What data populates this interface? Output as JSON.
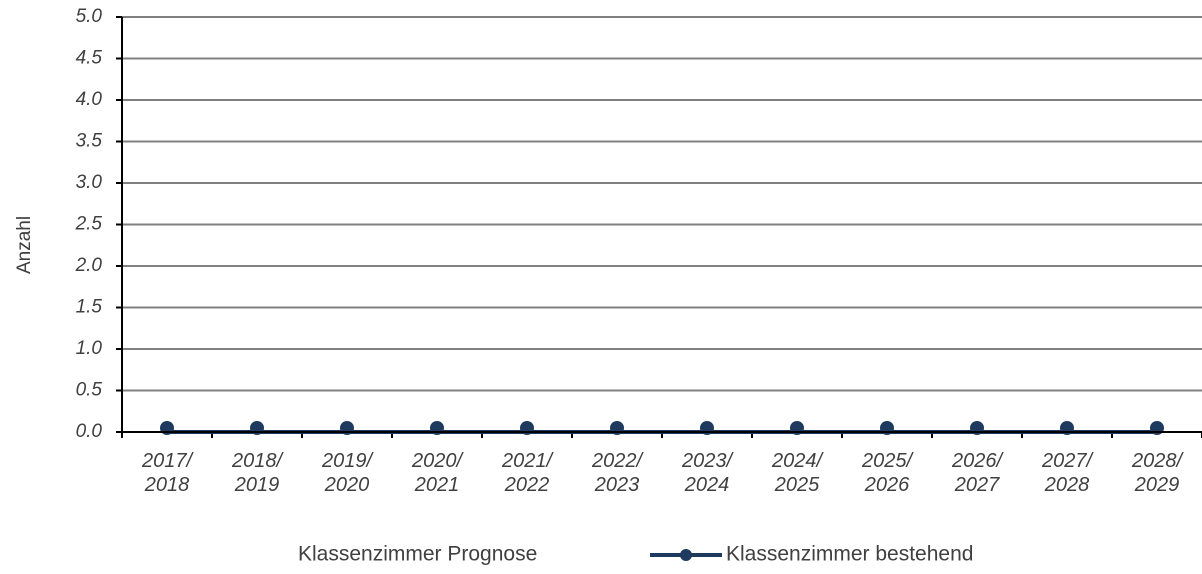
{
  "chart_data": {
    "type": "line",
    "y_label": "Anzahl",
    "categories": [
      "2017/ 2018",
      "2018/ 2019",
      "2019/ 2020",
      "2020/ 2021",
      "2021/ 2022",
      "2022/ 2023",
      "2023/ 2024",
      "2024/ 2025",
      "2025/ 2026",
      "2026/ 2027",
      "2027/ 2028",
      "2028/ 2029"
    ],
    "series": [
      {
        "name": "Klassenzimmer Prognose",
        "values": [
          0,
          0,
          0,
          0,
          0,
          0,
          0,
          0,
          0,
          0,
          0,
          0
        ]
      },
      {
        "name": "Klassenzimmer bestehend",
        "color": "#1f3a5f",
        "values": [
          0,
          0,
          0,
          0,
          0,
          0,
          0,
          0,
          0,
          0,
          0,
          0
        ]
      }
    ],
    "ylim": [
      0,
      5
    ],
    "yticks": [
      {
        "value": 0,
        "label": "0.0"
      },
      0.5,
      {
        "value": 1,
        "label": "1.0"
      },
      1.5,
      {
        "value": 2,
        "label": "2.0"
      },
      2.5,
      {
        "value": 3,
        "label": "3.0"
      },
      3.5,
      {
        "value": 4,
        "label": "4.0"
      },
      4.5,
      {
        "value": 5,
        "label": "5.0"
      }
    ],
    "grid": true
  }
}
